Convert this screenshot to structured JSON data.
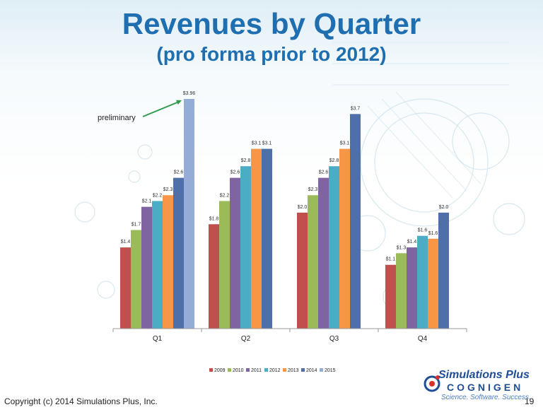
{
  "slide": {
    "title": "Revenues by Quarter",
    "subtitle": "(pro forma prior to 2012)",
    "copyright": "Copyright (c) 2014 Simulations Plus, Inc.",
    "page_number": "19"
  },
  "logo": {
    "line1": "Simulations Plus",
    "line2": "COGNIGEN",
    "line3": "Science. Software. Success."
  },
  "chart_data": {
    "type": "bar",
    "categories": [
      "Q1",
      "Q2",
      "Q3",
      "Q4"
    ],
    "series": [
      {
        "name": "2009",
        "color": "#c0504d",
        "values": [
          1.4,
          1.8,
          2.0,
          1.1
        ],
        "labels": [
          "$1.4",
          "$1.8",
          "$2.0",
          "$1.1"
        ]
      },
      {
        "name": "2010",
        "color": "#9bbb59",
        "values": [
          1.7,
          2.2,
          2.3,
          1.3
        ],
        "labels": [
          "$1.7",
          "$2.2",
          "$2.3",
          "$1.3"
        ]
      },
      {
        "name": "2011",
        "color": "#8064a2",
        "values": [
          2.1,
          2.6,
          2.6,
          1.4
        ],
        "labels": [
          "$2.1",
          "$2.6",
          "$2.6",
          "$1.4"
        ]
      },
      {
        "name": "2012",
        "color": "#4bacc6",
        "values": [
          2.2,
          2.8,
          2.8,
          1.6
        ],
        "labels": [
          "$2.2",
          "$2.8",
          "$2.8",
          "$1.6"
        ]
      },
      {
        "name": "2013",
        "color": "#f79646",
        "values": [
          2.3,
          3.1,
          3.1,
          1.55
        ],
        "labels": [
          "$2.3",
          "$3.1",
          "$3.1",
          "$1.6"
        ]
      },
      {
        "name": "2014",
        "color": "#4f6fa8",
        "values": [
          2.6,
          3.1,
          3.7,
          2.0
        ],
        "labels": [
          "$2.6",
          "$3.1",
          "$3.7",
          "$2.0"
        ]
      },
      {
        "name": "2015",
        "color": "#95add6",
        "values": [
          3.96,
          null,
          null,
          null
        ],
        "labels": [
          "$3.96",
          "",
          "",
          ""
        ]
      }
    ],
    "annotation": {
      "text": "preliminary",
      "color": "#2e9a4a"
    },
    "ylim": [
      0,
      4.1
    ],
    "legend_position": "bottom",
    "grid": false
  }
}
